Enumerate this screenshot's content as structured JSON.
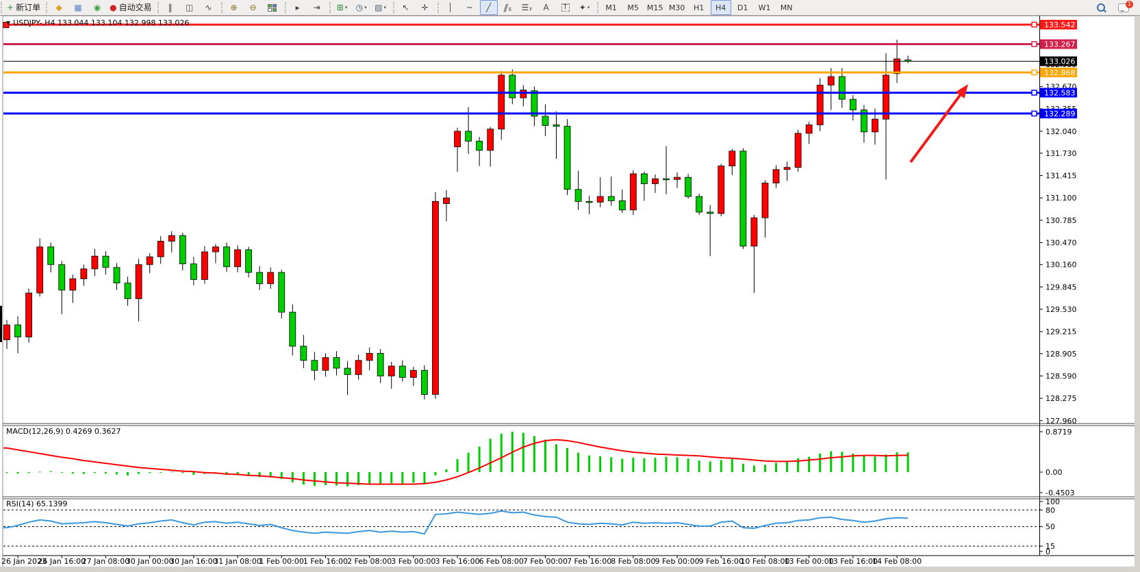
{
  "colors": {
    "bull_candle": "#ff0000",
    "bear_candle": "#00ce00",
    "wick": "#000000",
    "macd_histogram": "#00cc00",
    "macd_signal_line": "#ff0000",
    "rsi_line": "#3a96dd",
    "arrow": "#f01a1a",
    "scale_text": "#000000",
    "pane_border": "#4a4a4a"
  },
  "toolbar": {
    "new_order_label": "新订单",
    "autotrading_label": "自动交易",
    "groups": [
      {
        "items": [
          {
            "name": "new-order-button",
            "glyph": "+",
            "glyph_color": "#2e8b2e",
            "label": "新订单"
          }
        ]
      },
      {
        "items": [
          {
            "name": "market-watch-button",
            "glyph": "◆",
            "glyph_color": "#d9a41d"
          },
          {
            "name": "data-window-button",
            "glyph": "▦",
            "glyph_color": "#5b82c8"
          },
          {
            "name": "signals-button",
            "glyph": "◉",
            "glyph_color": "#3fa13f"
          },
          {
            "name": "autotrading-button",
            "glyph": "●",
            "glyph_color": "#cf2626",
            "label": "自动交易"
          }
        ]
      },
      {
        "items": [
          {
            "name": "bar-chart-button",
            "glyph": "‖"
          },
          {
            "name": "candlestick-chart-button",
            "glyph": "◫"
          },
          {
            "name": "line-chart-button",
            "glyph": "∿"
          }
        ]
      },
      {
        "items": [
          {
            "name": "zoom-in-button",
            "glyph": "⊕",
            "glyph_color": "#8a6d1c"
          },
          {
            "name": "zoom-out-button",
            "glyph": "⊖",
            "glyph_color": "#8a6d1c"
          },
          {
            "name": "tile-windows-button",
            "special": "tile"
          }
        ]
      },
      {
        "items": [
          {
            "name": "auto-scroll-button",
            "glyph": "▸"
          },
          {
            "name": "chart-shift-button",
            "glyph": "⇥"
          }
        ]
      },
      {
        "items": [
          {
            "name": "new-chart-button",
            "glyph": "⊞",
            "glyph_color": "#2e8b2e",
            "dropdown": true
          },
          {
            "name": "periods-button",
            "glyph": "◷",
            "glyph_color": "#33556b",
            "dropdown": true
          },
          {
            "name": "templates-button",
            "glyph": "▨",
            "glyph_color": "#556677",
            "dropdown": true
          }
        ]
      },
      {
        "items": [
          {
            "name": "cursor-button",
            "glyph": "↖"
          },
          {
            "name": "crosshair-button",
            "glyph": "✛"
          }
        ]
      },
      {
        "items": [
          {
            "name": "vertical-line-button",
            "glyph": "│"
          },
          {
            "name": "horizontal-line-button",
            "glyph": "─"
          },
          {
            "name": "trendline-button",
            "glyph": "╱",
            "active": true
          },
          {
            "name": "equidistant-channel-button",
            "glyph": "∥",
            "skew": true,
            "sub": "E"
          },
          {
            "name": "fibonacci-button",
            "glyph": "☰",
            "sub": "F"
          },
          {
            "name": "text-button",
            "glyph": "A"
          },
          {
            "name": "text-label-button",
            "glyph": "T",
            "boxed": true
          },
          {
            "name": "shapes-button",
            "glyph": "✦",
            "dropdown": true
          }
        ]
      }
    ],
    "timeframes": [
      "M1",
      "M5",
      "M15",
      "M30",
      "H1",
      "H4",
      "D1",
      "W1",
      "MN"
    ],
    "active_timeframe": "H4",
    "chat_badge": "1"
  },
  "chart": {
    "title": "USDJPY-,H4  133.044 133.104 132.998 133.026",
    "symbol": "USDJPY-",
    "timeframe": "H4"
  },
  "chart_data": {
    "type": "candlestick",
    "title": "USDJPY- H4",
    "current_bar": {
      "open": 133.044,
      "high": 133.104,
      "low": 132.998,
      "close": 133.026
    },
    "price_axis_ticks": [
      132.985,
      132.67,
      132.355,
      132.04,
      131.73,
      131.415,
      131.1,
      130.785,
      130.47,
      130.16,
      129.845,
      129.53,
      129.215,
      128.905,
      128.59,
      128.275,
      127.96
    ],
    "levels": [
      {
        "price": 133.542,
        "label": "133.542",
        "color": "#ff1a1a",
        "width": 3,
        "kind": "resistance-line"
      },
      {
        "price": 133.267,
        "label": "133.267",
        "color": "#d0204a",
        "width": 3,
        "kind": "resistance-line"
      },
      {
        "price": 133.026,
        "label": "133.026",
        "color": "#000000",
        "width": 1,
        "kind": "current-price-line"
      },
      {
        "price": 132.868,
        "label": "132.868",
        "color": "#ffa500",
        "width": 3,
        "kind": "level-line"
      },
      {
        "price": 132.583,
        "label": "132.583",
        "color": "#0000ff",
        "width": 3,
        "kind": "support-line"
      },
      {
        "price": 132.289,
        "label": "132.289",
        "color": "#0000ff",
        "width": 3,
        "kind": "support-line"
      }
    ],
    "time_axis_labels": [
      "26 Jan 2023",
      "26 Jan 16:00",
      "27 Jan 08:00",
      "30 Jan 00:00",
      "30 Jan 16:00",
      "31 Jan 08:00",
      "1 Feb 00:00",
      "1 Feb 16:00",
      "2 Feb 08:00",
      "3 Feb 00:00",
      "3 Feb 16:00",
      "6 Feb 08:00",
      "7 Feb 00:00",
      "7 Feb 16:00",
      "8 Feb 08:00",
      "9 Feb 00:00",
      "9 Feb 16:00",
      "10 Feb 08:00",
      "13 Feb 00:00",
      "13 Feb 16:00",
      "14 Feb 08:00"
    ],
    "candles": [
      [
        129.1,
        129.38,
        128.97,
        129.31
      ],
      [
        129.31,
        129.43,
        128.91,
        129.14
      ],
      [
        129.14,
        129.82,
        129.06,
        129.76
      ],
      [
        129.76,
        130.53,
        129.71,
        130.41
      ],
      [
        130.41,
        130.47,
        130.05,
        130.16
      ],
      [
        130.16,
        130.21,
        129.46,
        129.8
      ],
      [
        129.8,
        130.02,
        129.62,
        129.96
      ],
      [
        129.96,
        130.16,
        129.86,
        130.1
      ],
      [
        130.1,
        130.38,
        130.0,
        130.28
      ],
      [
        130.28,
        130.35,
        130.02,
        130.12
      ],
      [
        130.12,
        130.18,
        129.8,
        129.9
      ],
      [
        129.9,
        129.99,
        129.58,
        129.68
      ],
      [
        129.68,
        130.24,
        129.36,
        130.16
      ],
      [
        130.16,
        130.32,
        130.04,
        130.27
      ],
      [
        130.27,
        130.56,
        130.17,
        130.49
      ],
      [
        130.49,
        130.63,
        130.33,
        130.57
      ],
      [
        130.57,
        130.61,
        130.08,
        130.17
      ],
      [
        130.17,
        130.27,
        129.87,
        129.95
      ],
      [
        129.95,
        130.42,
        129.89,
        130.34
      ],
      [
        130.34,
        130.45,
        130.18,
        130.41
      ],
      [
        130.41,
        130.47,
        130.06,
        130.13
      ],
      [
        130.13,
        130.43,
        130.05,
        130.37
      ],
      [
        130.37,
        130.41,
        129.98,
        130.05
      ],
      [
        130.05,
        130.14,
        129.8,
        129.89
      ],
      [
        129.89,
        130.12,
        129.82,
        130.05
      ],
      [
        130.05,
        130.09,
        129.4,
        129.49
      ],
      [
        129.49,
        129.6,
        128.88,
        129.01
      ],
      [
        129.01,
        129.17,
        128.7,
        128.81
      ],
      [
        128.81,
        128.93,
        128.53,
        128.67
      ],
      [
        128.67,
        128.91,
        128.58,
        128.85
      ],
      [
        128.85,
        128.94,
        128.6,
        128.7
      ],
      [
        128.7,
        128.8,
        128.32,
        128.61
      ],
      [
        128.61,
        128.89,
        128.54,
        128.81
      ],
      [
        128.81,
        128.99,
        128.67,
        128.91
      ],
      [
        128.91,
        128.97,
        128.49,
        128.59
      ],
      [
        128.59,
        128.79,
        128.41,
        128.73
      ],
      [
        128.73,
        128.81,
        128.51,
        128.57
      ],
      [
        128.57,
        128.72,
        128.45,
        128.67
      ],
      [
        128.67,
        128.74,
        128.26,
        128.33
      ],
      [
        128.33,
        131.18,
        128.27,
        131.05
      ],
      [
        131.02,
        131.21,
        130.77,
        131.1
      ],
      [
        131.82,
        132.09,
        131.47,
        132.04
      ],
      [
        132.04,
        132.38,
        131.72,
        131.9
      ],
      [
        131.9,
        131.96,
        131.55,
        131.77
      ],
      [
        131.77,
        132.1,
        131.54,
        132.07
      ],
      [
        132.07,
        132.89,
        131.92,
        132.83
      ],
      [
        132.83,
        132.91,
        132.42,
        132.51
      ],
      [
        132.51,
        132.69,
        132.39,
        132.62
      ],
      [
        132.61,
        132.67,
        132.11,
        132.25
      ],
      [
        132.25,
        132.42,
        131.97,
        132.12
      ],
      [
        132.13,
        132.32,
        131.65,
        132.11
      ],
      [
        132.11,
        132.21,
        131.14,
        131.22
      ],
      [
        131.22,
        131.48,
        130.93,
        131.05
      ],
      [
        131.05,
        131.13,
        130.87,
        131.04
      ],
      [
        131.04,
        131.39,
        130.97,
        131.12
      ],
      [
        131.12,
        131.4,
        130.99,
        131.06
      ],
      [
        131.06,
        131.22,
        130.89,
        130.93
      ],
      [
        130.93,
        131.49,
        130.86,
        131.44
      ],
      [
        131.44,
        131.47,
        131.06,
        131.3
      ],
      [
        131.3,
        131.43,
        131.17,
        131.37
      ],
      [
        131.37,
        131.83,
        131.15,
        131.36
      ],
      [
        131.36,
        131.46,
        131.24,
        131.39
      ],
      [
        131.39,
        131.44,
        131.09,
        131.12
      ],
      [
        131.12,
        131.16,
        130.86,
        130.9
      ],
      [
        130.9,
        131.0,
        130.28,
        130.88
      ],
      [
        130.88,
        131.58,
        130.84,
        131.55
      ],
      [
        131.55,
        131.79,
        131.42,
        131.76
      ],
      [
        131.76,
        131.8,
        130.38,
        130.42
      ],
      [
        130.42,
        130.86,
        129.76,
        130.82
      ],
      [
        130.82,
        131.35,
        130.54,
        131.31
      ],
      [
        131.31,
        131.56,
        131.24,
        131.5
      ],
      [
        131.5,
        131.61,
        131.34,
        131.53
      ],
      [
        131.53,
        132.06,
        131.47,
        132.01
      ],
      [
        132.01,
        132.17,
        131.86,
        132.13
      ],
      [
        132.13,
        132.79,
        132.04,
        132.69
      ],
      [
        132.69,
        132.93,
        132.34,
        132.81
      ],
      [
        132.81,
        132.93,
        132.37,
        132.49
      ],
      [
        132.49,
        132.55,
        132.19,
        132.34
      ],
      [
        132.34,
        132.41,
        131.88,
        132.03
      ],
      [
        132.03,
        132.36,
        131.85,
        132.21
      ],
      [
        132.21,
        133.14,
        131.36,
        132.83
      ],
      [
        132.85,
        133.33,
        132.72,
        133.06
      ],
      [
        133.044,
        133.104,
        132.998,
        133.026
      ]
    ],
    "macd": {
      "label": "MACD(12,26,9) 0.4269 0.3627",
      "params": "12,26,9",
      "macd_value": 0.4269,
      "signal_value": 0.3627,
      "scale_labels": [
        {
          "v": 0.8719,
          "label": "0.8719"
        },
        {
          "v": 0,
          "label": "0.00"
        },
        {
          "v": -0.4503,
          "label": "-0.4503"
        }
      ],
      "histogram": [
        -0.02,
        -0.03,
        -0.02,
        0.01,
        0.02,
        -0.01,
        -0.03,
        -0.04,
        -0.02,
        -0.03,
        -0.05,
        -0.07,
        -0.04,
        -0.02,
        -0.01,
        0.01,
        -0.02,
        -0.06,
        -0.04,
        -0.03,
        -0.06,
        -0.05,
        -0.08,
        -0.11,
        -0.1,
        -0.15,
        -0.22,
        -0.27,
        -0.3,
        -0.28,
        -0.29,
        -0.31,
        -0.28,
        -0.25,
        -0.27,
        -0.24,
        -0.25,
        -0.23,
        -0.26,
        -0.07,
        0.06,
        0.28,
        0.42,
        0.55,
        0.72,
        0.83,
        0.87,
        0.85,
        0.78,
        0.7,
        0.6,
        0.52,
        0.42,
        0.36,
        0.34,
        0.32,
        0.29,
        0.31,
        0.3,
        0.31,
        0.33,
        0.32,
        0.29,
        0.25,
        0.23,
        0.26,
        0.28,
        0.18,
        0.14,
        0.16,
        0.2,
        0.24,
        0.3,
        0.33,
        0.4,
        0.45,
        0.44,
        0.4,
        0.35,
        0.34,
        0.38,
        0.43,
        0.4269
      ],
      "signal_line": [
        0.52,
        0.48,
        0.44,
        0.4,
        0.36,
        0.32,
        0.29,
        0.25,
        0.22,
        0.19,
        0.16,
        0.13,
        0.1,
        0.08,
        0.06,
        0.04,
        0.02,
        0.01,
        -0.01,
        -0.02,
        -0.04,
        -0.05,
        -0.07,
        -0.08,
        -0.1,
        -0.12,
        -0.14,
        -0.17,
        -0.19,
        -0.21,
        -0.23,
        -0.24,
        -0.25,
        -0.26,
        -0.26,
        -0.26,
        -0.26,
        -0.26,
        -0.25,
        -0.22,
        -0.17,
        -0.1,
        -0.01,
        0.09,
        0.2,
        0.31,
        0.43,
        0.54,
        0.62,
        0.68,
        0.7,
        0.68,
        0.64,
        0.59,
        0.54,
        0.5,
        0.46,
        0.43,
        0.41,
        0.39,
        0.38,
        0.37,
        0.36,
        0.35,
        0.33,
        0.31,
        0.3,
        0.28,
        0.26,
        0.24,
        0.23,
        0.23,
        0.24,
        0.26,
        0.28,
        0.31,
        0.33,
        0.35,
        0.36,
        0.36,
        0.35,
        0.36,
        0.3627
      ]
    },
    "rsi": {
      "label": "RSI(14) 65.1399",
      "period": 14,
      "value": 65.1399,
      "scale_labels": [
        {
          "v": 100,
          "label": "100"
        },
        {
          "v": 80,
          "label": "80"
        },
        {
          "v": 50,
          "label": "50"
        },
        {
          "v": 15,
          "label": "15"
        },
        {
          "v": 0,
          "label": "0"
        }
      ],
      "dashed_levels": [
        80,
        50,
        15
      ],
      "values": [
        48,
        52,
        58,
        62,
        60,
        55,
        56,
        57,
        59,
        57,
        54,
        51,
        55,
        57,
        60,
        62,
        57,
        53,
        58,
        59,
        56,
        58,
        55,
        52,
        54,
        48,
        43,
        40,
        38,
        40,
        39,
        38,
        41,
        43,
        40,
        42,
        40,
        41,
        37,
        72,
        73,
        76,
        74,
        72,
        74,
        78,
        75,
        76,
        71,
        68,
        67,
        58,
        55,
        54,
        56,
        55,
        53,
        58,
        56,
        57,
        56,
        57,
        54,
        51,
        51,
        58,
        60,
        48,
        47,
        52,
        56,
        57,
        61,
        62,
        66,
        67,
        63,
        61,
        58,
        60,
        64,
        66,
        65.14
      ],
      "ylim": [
        0,
        100
      ]
    },
    "annotations": [
      {
        "type": "arrow",
        "from": [
          1330,
          237
        ],
        "to": [
          1414,
          123
        ],
        "color": "#f01a1a",
        "width": 4
      }
    ]
  }
}
